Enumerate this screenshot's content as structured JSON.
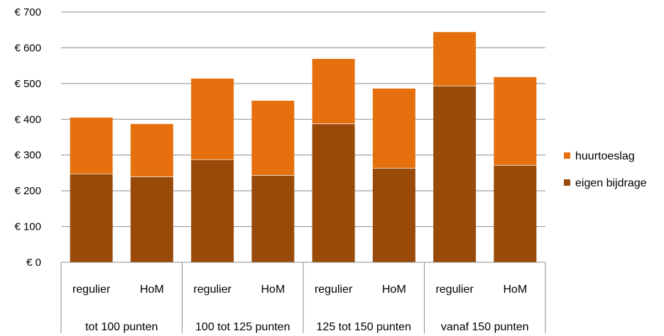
{
  "chart_data": {
    "type": "bar",
    "stacked": true,
    "categories": [
      "regulier",
      "HoM",
      "regulier",
      "HoM",
      "regulier",
      "HoM",
      "regulier",
      "HoM"
    ],
    "groups": [
      "tot 100 punten",
      "100 tot 125 punten",
      "125 tot 150 punten",
      "vanaf 150 punten"
    ],
    "series": [
      {
        "name": "eigen bijdrage",
        "color": "#994A08",
        "values": [
          248,
          240,
          288,
          244,
          388,
          264,
          494,
          272
        ]
      },
      {
        "name": "huurtoeslag",
        "color": "#E5700D",
        "values": [
          157,
          147,
          226,
          208,
          181,
          222,
          150,
          246
        ]
      }
    ],
    "ylim": [
      0,
      700
    ],
    "yticks": [
      "€ 0",
      "€ 100",
      "€ 200",
      "€ 300",
      "€ 400",
      "€ 500",
      "€ 600",
      "€ 700"
    ],
    "grid": true,
    "legend_position": "right"
  }
}
